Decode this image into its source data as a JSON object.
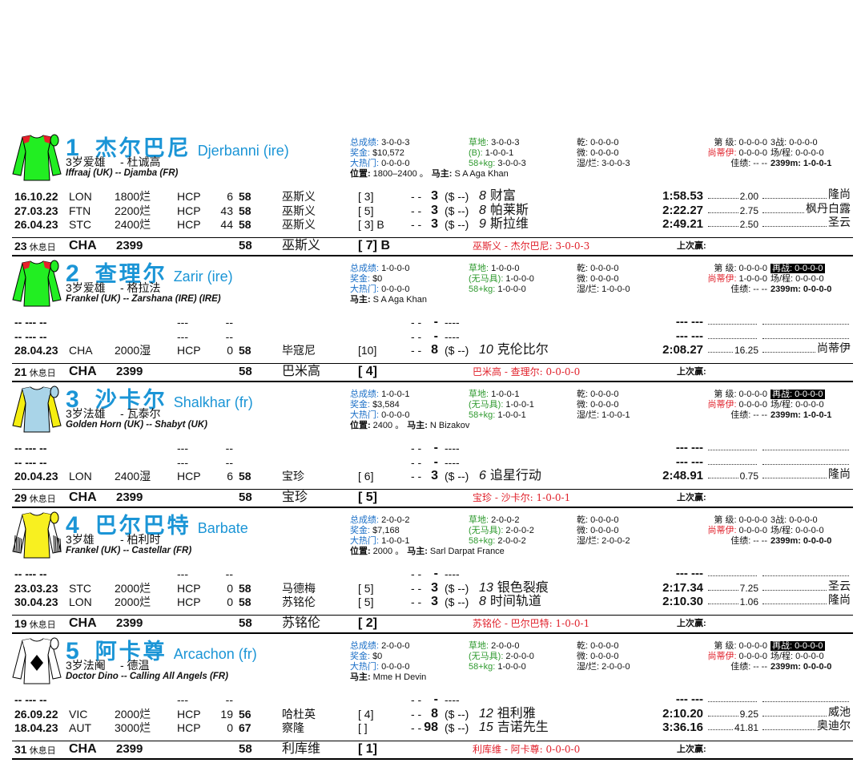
{
  "horses": [
    {
      "number": "1",
      "name_cn": "杰尔巴尼",
      "name_en": "Djerbanni (ire)",
      "age": "3岁爱雄",
      "trainer": "- 杜诚高",
      "pedigree": "Iffraaj (UK) -- Djamba (FR)",
      "stats": [
        [
          {
            "label": "总成绩:",
            "value": "3-0-0-3"
          },
          {
            "label": "奖金:",
            "value": "$10,572"
          },
          {
            "label": "大热门:",
            "value": "0-0-0-0"
          }
        ],
        [
          {
            "label": "草地:",
            "value": "3-0-0-3"
          },
          {
            "label": "(B):",
            "value": "1-0-0-1"
          },
          {
            "label": "58+kg:",
            "value": "3-0-0-3"
          }
        ],
        [
          {
            "label": "乾:",
            "value": "0-0-0-0"
          },
          {
            "label": "微:",
            "value": "0-0-0-0"
          },
          {
            "label": "湿/烂:",
            "value": "3-0-0-3"
          }
        ],
        [
          {
            "label": "第 级:",
            "value": "0-0-0-0"
          },
          {
            "label": "尚蒂伊:",
            "value": "0-0-0-0"
          },
          {
            "label": "佳绩:",
            "value": "-- --"
          }
        ],
        [
          {
            "label": "3战:",
            "value": "0-0-0-0"
          },
          {
            "label": "场/程:",
            "value": "0-0-0-0"
          },
          {
            "label": "2399m:",
            "value": "1-0-0-1"
          }
        ]
      ],
      "position": {
        "label": "位置:",
        "value": "1800–2400 。"
      },
      "owner": {
        "label": "马主:",
        "value": "S A Aga Khan"
      },
      "runs": [
        {
          "date": "16.10.22",
          "course": "LON",
          "dist": "1800烂",
          "type": "HCP",
          "num": "6",
          "wt": "58",
          "jockey": "巫斯义",
          "draw": "[ 3]",
          "sep": "- -",
          "pos": "3",
          "dollar": "($ --)",
          "rank": "8",
          "winner": "财富",
          "time": "1:58.53",
          "odds": "2.00",
          "trainer": "隆尚"
        },
        {
          "date": "27.03.23",
          "course": "FTN",
          "dist": "2200烂",
          "type": "HCP",
          "num": "43",
          "wt": "58",
          "jockey": "巫斯义",
          "draw": "[ 5]",
          "sep": "- -",
          "pos": "3",
          "dollar": "($ --)",
          "rank": "8",
          "winner": "帕莱斯",
          "time": "2:22.27",
          "odds": "2.75",
          "trainer": "枫丹白露"
        },
        {
          "date": "26.04.23",
          "course": "STC",
          "dist": "2400烂",
          "type": "HCP",
          "num": "44",
          "wt": "58",
          "jockey": "巫斯义",
          "draw": "[ 3] B",
          "sep": "- -",
          "pos": "3",
          "dollar": "($ --)",
          "rank": "9",
          "winner": "斯拉维",
          "time": "2:49.21",
          "odds": "2.50",
          "trainer": "圣云"
        }
      ],
      "footer": {
        "rest": "23",
        "rest_label": "休息日",
        "course": "CHA",
        "dist": "2399",
        "wt": "58",
        "jockey": "巫斯义",
        "draw": "[ 7] B",
        "combo": "巫斯义 - 杰尔巴尼: 3-0-0-3",
        "last_win": "上次赢:"
      }
    },
    {
      "number": "2",
      "name_cn": "查理尔",
      "name_en": "Zarir (ire)",
      "age": "3岁爱雄",
      "trainer": "- 格拉法",
      "pedigree": "Frankel (UK) -- Zarshana (IRE) (IRE)",
      "stats": [
        [
          {
            "label": "总成绩:",
            "value": "1-0-0-0"
          },
          {
            "label": "奖金:",
            "value": "$0"
          },
          {
            "label": "大热门:",
            "value": "0-0-0-0"
          }
        ],
        [
          {
            "label": "草地:",
            "value": "1-0-0-0"
          },
          {
            "label": "(无马具):",
            "value": "1-0-0-0"
          },
          {
            "label": "58+kg:",
            "value": "1-0-0-0"
          }
        ],
        [
          {
            "label": "乾:",
            "value": "0-0-0-0"
          },
          {
            "label": "微:",
            "value": "0-0-0-0"
          },
          {
            "label": "湿/烂:",
            "value": "1-0-0-0"
          }
        ],
        [
          {
            "label": "第 级:",
            "value": "0-0-0-0"
          },
          {
            "label": "尚蒂伊:",
            "value": "1-0-0-0"
          },
          {
            "label": "佳绩:",
            "value": "-- --"
          }
        ],
        [
          {
            "label": "再战:",
            "value": "0-0-0-0",
            "highlight": true
          },
          {
            "label": "场/程:",
            "value": "0-0-0-0"
          },
          {
            "label": "2399m:",
            "value": "0-0-0-0"
          }
        ]
      ],
      "owner": {
        "label": "马主:",
        "value": "S A Aga Khan"
      },
      "runs": [
        {
          "date": "-- --- --",
          "type": "---",
          "num": "--",
          "sep": "- -",
          "pos": "-",
          "dollar": "----",
          "time": "--- ---"
        },
        {
          "date": "-- --- --",
          "type": "---",
          "num": "--",
          "sep": "- -",
          "pos": "-",
          "dollar": "----",
          "time": "--- ---"
        },
        {
          "date": "28.04.23",
          "course": "CHA",
          "dist": "2000湿",
          "type": "HCP",
          "num": "0",
          "wt": "58",
          "jockey": "毕寇尼",
          "draw": "[10]",
          "sep": "- -",
          "pos": "8",
          "dollar": "($ --)",
          "rank": "10",
          "winner": "克伦比尔",
          "time": "2:08.27",
          "odds": "16.25",
          "trainer": "尚蒂伊"
        }
      ],
      "footer": {
        "rest": "21",
        "rest_label": "休息日",
        "course": "CHA",
        "dist": "2399",
        "wt": "58",
        "jockey": "巴米高",
        "draw": "[ 4]",
        "combo": "巴米高 - 查理尔: 0-0-0-0",
        "last_win": "上次赢:"
      }
    },
    {
      "number": "3",
      "name_cn": "沙卡尔",
      "name_en": "Shalkhar (fr)",
      "age": "3岁法雄",
      "trainer": "- 瓦泰尔",
      "pedigree": "Golden Horn (UK) -- Shabyt (UK)",
      "stats": [
        [
          {
            "label": "总成绩:",
            "value": "1-0-0-1"
          },
          {
            "label": "奖金:",
            "value": "$3,584"
          },
          {
            "label": "大热门:",
            "value": "0-0-0-0"
          }
        ],
        [
          {
            "label": "草地:",
            "value": "1-0-0-1"
          },
          {
            "label": "(无马具):",
            "value": "1-0-0-1"
          },
          {
            "label": "58+kg:",
            "value": "1-0-0-1"
          }
        ],
        [
          {
            "label": "乾:",
            "value": "0-0-0-0"
          },
          {
            "label": "微:",
            "value": "0-0-0-0"
          },
          {
            "label": "湿/烂:",
            "value": "1-0-0-1"
          }
        ],
        [
          {
            "label": "第 级:",
            "value": "0-0-0-0"
          },
          {
            "label": "尚蒂伊:",
            "value": "0-0-0-0"
          },
          {
            "label": "佳绩:",
            "value": "-- --"
          }
        ],
        [
          {
            "label": "再战:",
            "value": "0-0-0-0",
            "highlight": true
          },
          {
            "label": "场/程:",
            "value": "0-0-0-0"
          },
          {
            "label": "2399m:",
            "value": "1-0-0-1"
          }
        ]
      ],
      "position": {
        "label": "位置:",
        "value": "2400 。"
      },
      "owner": {
        "label": "马主:",
        "value": "N Bizakov"
      },
      "runs": [
        {
          "date": "-- --- --",
          "type": "---",
          "num": "--",
          "sep": "- -",
          "pos": "-",
          "dollar": "----",
          "time": "--- ---"
        },
        {
          "date": "-- --- --",
          "type": "---",
          "num": "--",
          "sep": "- -",
          "pos": "-",
          "dollar": "----",
          "time": "--- ---"
        },
        {
          "date": "20.04.23",
          "course": "LON",
          "dist": "2400湿",
          "type": "HCP",
          "num": "6",
          "wt": "58",
          "jockey": "宝珍",
          "draw": "[ 6]",
          "sep": "- -",
          "pos": "3",
          "dollar": "($ --)",
          "rank": "6",
          "winner": "追星行动",
          "time": "2:48.91",
          "odds": "0.75",
          "trainer": "隆尚"
        }
      ],
      "footer": {
        "rest": "29",
        "rest_label": "休息日",
        "course": "CHA",
        "dist": "2399",
        "wt": "58",
        "jockey": "宝珍",
        "draw": "[ 5]",
        "combo": "宝珍 - 沙卡尔: 1-0-0-1",
        "last_win": "上次赢:"
      }
    },
    {
      "number": "4",
      "name_cn": "巴尔巴特",
      "name_en": "Barbate",
      "age": "3岁雄",
      "trainer": "- 柏利时",
      "pedigree": "Frankel (UK) -- Castellar (FR)",
      "stats": [
        [
          {
            "label": "总成绩:",
            "value": "2-0-0-2"
          },
          {
            "label": "奖金:",
            "value": "$7,168"
          },
          {
            "label": "大热门:",
            "value": "1-0-0-1"
          }
        ],
        [
          {
            "label": "草地:",
            "value": "2-0-0-2"
          },
          {
            "label": "(无马具):",
            "value": "2-0-0-2"
          },
          {
            "label": "58+kg:",
            "value": "2-0-0-2"
          }
        ],
        [
          {
            "label": "乾:",
            "value": "0-0-0-0"
          },
          {
            "label": "微:",
            "value": "0-0-0-0"
          },
          {
            "label": "湿/烂:",
            "value": "2-0-0-2"
          }
        ],
        [
          {
            "label": "第 级:",
            "value": "0-0-0-0"
          },
          {
            "label": "尚蒂伊:",
            "value": "0-0-0-0"
          },
          {
            "label": "佳绩:",
            "value": "-- --"
          }
        ],
        [
          {
            "label": "3战:",
            "value": "0-0-0-0"
          },
          {
            "label": "场/程:",
            "value": "0-0-0-0"
          },
          {
            "label": "2399m:",
            "value": "0-0-0-0"
          }
        ]
      ],
      "position": {
        "label": "位置:",
        "value": "2000 。"
      },
      "owner": {
        "label": "马主:",
        "value": "Sarl Darpat France"
      },
      "runs": [
        {
          "date": "-- --- --",
          "type": "---",
          "num": "--",
          "sep": "- -",
          "pos": "-",
          "dollar": "----",
          "time": "--- ---"
        },
        {
          "date": "23.03.23",
          "course": "STC",
          "dist": "2000烂",
          "type": "HCP",
          "num": "0",
          "wt": "58",
          "jockey": "马德梅",
          "draw": "[ 5]",
          "sep": "- -",
          "pos": "3",
          "dollar": "($ --)",
          "rank": "13",
          "winner": "银色裂痕",
          "time": "2:17.34",
          "odds": "7.25",
          "trainer": "圣云"
        },
        {
          "date": "30.04.23",
          "course": "LON",
          "dist": "2000烂",
          "type": "HCP",
          "num": "0",
          "wt": "58",
          "jockey": "苏铭伦",
          "draw": "[ 5]",
          "sep": "- -",
          "pos": "3",
          "dollar": "($ --)",
          "rank": "8",
          "winner": "时间轨道",
          "time": "2:10.30",
          "odds": "1.06",
          "trainer": "隆尚"
        }
      ],
      "footer": {
        "rest": "19",
        "rest_label": "休息日",
        "course": "CHA",
        "dist": "2399",
        "wt": "58",
        "jockey": "苏铭伦",
        "draw": "[ 2]",
        "combo": "苏铭伦 - 巴尔巴特: 1-0-0-1",
        "last_win": "上次赢:"
      }
    },
    {
      "number": "5",
      "name_cn": "阿卡尊",
      "name_en": "Arcachon (fr)",
      "age": "3岁法阉",
      "trainer": "- 德温",
      "pedigree": "Doctor Dino -- Calling All Angels (FR)",
      "stats": [
        [
          {
            "label": "总成绩:",
            "value": "2-0-0-0"
          },
          {
            "label": "奖金:",
            "value": "$0"
          },
          {
            "label": "大热门:",
            "value": "0-0-0-0"
          }
        ],
        [
          {
            "label": "草地:",
            "value": "2-0-0-0"
          },
          {
            "label": "(无马具):",
            "value": "2-0-0-0"
          },
          {
            "label": "58+kg:",
            "value": "1-0-0-0"
          }
        ],
        [
          {
            "label": "乾:",
            "value": "0-0-0-0"
          },
          {
            "label": "微:",
            "value": "0-0-0-0"
          },
          {
            "label": "湿/烂:",
            "value": "2-0-0-0"
          }
        ],
        [
          {
            "label": "第 级:",
            "value": "0-0-0-0"
          },
          {
            "label": "尚蒂伊:",
            "value": "0-0-0-0"
          },
          {
            "label": "佳绩:",
            "value": "-- --"
          }
        ],
        [
          {
            "label": "再战:",
            "value": "0-0-0-0",
            "highlight": true
          },
          {
            "label": "场/程:",
            "value": "0-0-0-0"
          },
          {
            "label": "2399m:",
            "value": "0-0-0-0"
          }
        ]
      ],
      "owner": {
        "label": "马主:",
        "value": "Mme H Devin"
      },
      "runs": [
        {
          "date": "-- --- --",
          "type": "---",
          "num": "--",
          "sep": "- -",
          "pos": "-",
          "dollar": "----",
          "time": "--- ---"
        },
        {
          "date": "26.09.22",
          "course": "VIC",
          "dist": "2000烂",
          "type": "HCP",
          "num": "19",
          "wt": "56",
          "jockey": "哈杜英",
          "draw": "[ 4]",
          "sep": "- -",
          "pos": "8",
          "dollar": "($ --)",
          "rank": "12",
          "winner": "祖利雅",
          "time": "2:10.20",
          "odds": "9.25",
          "trainer": "威池"
        },
        {
          "date": "18.04.23",
          "course": "AUT",
          "dist": "3000烂",
          "type": "HCP",
          "num": "0",
          "wt": "67",
          "jockey": "察隆",
          "draw": "[ ]",
          "sep": "- -",
          "pos": "98",
          "dollar": "($ --)",
          "rank": "15",
          "winner": "吉诺先生",
          "time": "3:36.16",
          "odds": "41.81",
          "trainer": "奥迪尔"
        }
      ],
      "footer": {
        "rest": "31",
        "rest_label": "休息日",
        "course": "CHA",
        "dist": "2399",
        "wt": "58",
        "jockey": "利库维",
        "draw": "[ 1]",
        "combo": "利库维 - 阿卡尊: 0-0-0-0",
        "last_win": "上次赢:"
      }
    }
  ]
}
